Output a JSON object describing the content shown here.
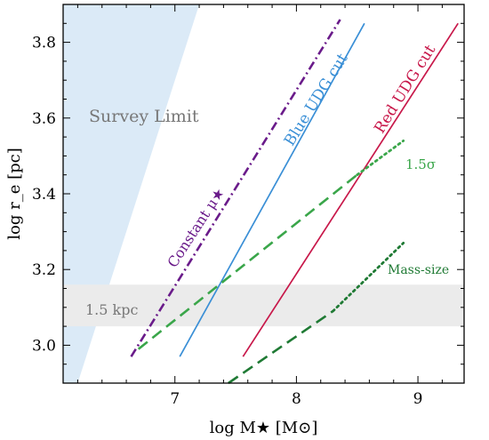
{
  "chart_data": {
    "type": "line",
    "xlabel": "log M★ [M⊙]",
    "ylabel": "log r_e [pc]",
    "xlim": [
      6.08,
      9.38
    ],
    "ylim": [
      2.9,
      3.9
    ],
    "xticks": [
      7,
      8,
      9
    ],
    "yticks": [
      3.0,
      3.2,
      3.4,
      3.6,
      3.8
    ],
    "grid": false,
    "regions": [
      {
        "name": "survey-limit",
        "label": "Survey Limit",
        "color": "#dbeaf7",
        "polygon": [
          [
            6.08,
            2.9
          ],
          [
            6.08,
            3.9
          ],
          [
            7.2,
            3.9
          ],
          [
            6.2,
            2.9
          ]
        ]
      },
      {
        "name": "kpc-band",
        "label": "1.5 kpc",
        "color": "#ebebeb",
        "y_range": [
          3.05,
          3.16
        ]
      }
    ],
    "series": [
      {
        "name": "Constant μ★",
        "label": "Constant μ★",
        "color": "#6a1b8a",
        "style": "dashdot",
        "x": [
          6.64,
          8.36
        ],
        "y": [
          2.97,
          3.86
        ]
      },
      {
        "name": "Blue UDG cut",
        "label": "Blue UDG cut",
        "color": "#3a8fd6",
        "style": "solid",
        "x": [
          7.04,
          8.56
        ],
        "y": [
          2.97,
          3.85
        ]
      },
      {
        "name": "Red UDG cut",
        "label": "Red UDG cut",
        "color": "#c8184a",
        "style": "solid",
        "x": [
          7.56,
          9.33
        ],
        "y": [
          2.97,
          3.85
        ]
      },
      {
        "name": "1.5σ",
        "label": "1.5σ",
        "color": "#3aa64a",
        "style": "dashed",
        "x": [
          6.7,
          8.5
        ],
        "y": [
          2.99,
          3.45
        ]
      },
      {
        "name": "1.5σ",
        "label": "",
        "color": "#3aa64a",
        "style": "dotted",
        "x": [
          8.5,
          8.88
        ],
        "y": [
          3.45,
          3.54
        ]
      },
      {
        "name": "Mass-size",
        "label": "Mass-size",
        "color": "#1f7a34",
        "style": "dashed",
        "x": [
          7.44,
          8.3
        ],
        "y": [
          2.9,
          3.09
        ]
      },
      {
        "name": "Mass-size",
        "label": "",
        "color": "#1f7a34",
        "style": "dotted",
        "x": [
          8.3,
          8.88
        ],
        "y": [
          3.09,
          3.27
        ]
      }
    ],
    "annotations": [
      {
        "name": "survey-limit-label",
        "text": "Survey Limit",
        "color": "#777777"
      },
      {
        "name": "kpc-label",
        "text": "1.5 kpc",
        "color": "#777777"
      },
      {
        "name": "constant-mu-label",
        "text": "Constant μ★",
        "color": "#6a1b8a"
      },
      {
        "name": "blue-udg-label",
        "text": "Blue UDG cut",
        "color": "#3a8fd6"
      },
      {
        "name": "red-udg-label",
        "text": "Red UDG cut",
        "color": "#c8184a"
      },
      {
        "name": "sigma-label",
        "text": "1.5σ",
        "color": "#3aa64a"
      },
      {
        "name": "mass-size-label",
        "text": "Mass-size",
        "color": "#1f7a34"
      }
    ]
  }
}
